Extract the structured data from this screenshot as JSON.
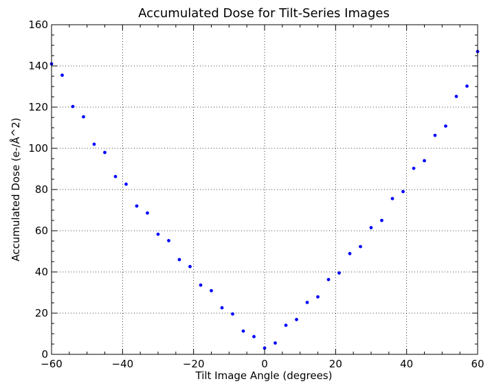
{
  "chart_data": {
    "type": "scatter",
    "title": "Accumulated Dose for Tilt-Series Images",
    "xlabel": "Tilt Image Angle (degrees)",
    "ylabel": "Accumulated Dose (e-/Å^2)",
    "xlim": [
      -60,
      60
    ],
    "ylim": [
      0,
      160
    ],
    "xticks": [
      -60,
      -40,
      -20,
      0,
      20,
      40,
      60
    ],
    "xtick_labels": [
      "−60",
      "−40",
      "−20",
      "0",
      "20",
      "40",
      "60"
    ],
    "yticks": [
      0,
      20,
      40,
      60,
      80,
      100,
      120,
      140,
      160
    ],
    "ytick_labels": [
      "0",
      "20",
      "40",
      "60",
      "80",
      "100",
      "120",
      "140",
      "160"
    ],
    "grid": true,
    "marker_color": "#0000ff",
    "series": [
      {
        "x": [
          -60,
          -57,
          -54,
          -51,
          -48,
          -45,
          -42,
          -39,
          -36,
          -33,
          -30,
          -27,
          -24,
          -21,
          -18,
          -15,
          -12,
          -9,
          -6,
          -3,
          0,
          3,
          6,
          9,
          12,
          15,
          18,
          21,
          24,
          27,
          30,
          33,
          36,
          39,
          42,
          45,
          48,
          51,
          54,
          57,
          60
        ],
        "y": [
          141,
          135.5,
          120.3,
          115.3,
          102,
          98,
          86.3,
          82.6,
          72,
          68.6,
          58.3,
          55.2,
          46,
          42.6,
          33.6,
          30.9,
          22.6,
          19.6,
          11.3,
          8.6,
          3,
          5.5,
          14.1,
          16.9,
          25.2,
          27.9,
          36.3,
          39.5,
          48.9,
          52.3,
          61.5,
          65,
          75.6,
          79,
          90.3,
          94,
          106.3,
          110.8,
          125.2,
          130.2,
          147
        ]
      }
    ]
  }
}
